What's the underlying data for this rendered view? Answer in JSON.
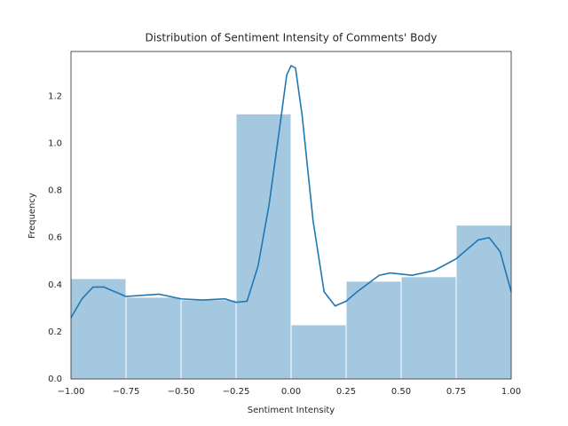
{
  "chart_data": {
    "type": "histogram",
    "title": "Distribution of  Sentiment Intensity of Comments' Body",
    "x_label": "Sentiment Intensity",
    "y_label": "Frequency",
    "bins": [
      -1,
      -0.75,
      -0.5,
      -0.25,
      0,
      0.25,
      0.5,
      0.75,
      1
    ],
    "values": [
      0.426,
      0.347,
      0.336,
      1.125,
      0.23,
      0.415,
      0.434,
      0.653
    ],
    "color": "#a5c8e1",
    "kde": {
      "color": "#1f77b4",
      "x": [
        -1,
        -0.95,
        -0.9,
        -0.85,
        -0.8,
        -0.75,
        -0.6,
        -0.5,
        -0.4,
        -0.3,
        -0.25,
        -0.2,
        -0.15,
        -0.1,
        -0.05,
        -0.02,
        0,
        0.02,
        0.05,
        0.1,
        0.15,
        0.2,
        0.25,
        0.3,
        0.4,
        0.45,
        0.55,
        0.65,
        0.75,
        0.85,
        0.9,
        0.95,
        1
      ],
      "values": [
        0.26,
        0.34,
        0.39,
        0.39,
        0.37,
        0.35,
        0.36,
        0.34,
        0.335,
        0.34,
        0.325,
        0.33,
        0.48,
        0.74,
        1.08,
        1.29,
        1.33,
        1.32,
        1.12,
        0.67,
        0.37,
        0.31,
        0.33,
        0.37,
        0.44,
        0.45,
        0.44,
        0.46,
        0.51,
        0.59,
        0.6,
        0.54,
        0.37
      ]
    },
    "xlim": [
      -1,
      1
    ],
    "ylim": [
      0,
      1.39
    ],
    "xticks": [
      {
        "value": -1,
        "label": "−1.00"
      },
      {
        "value": -0.75,
        "label": "−0.75"
      },
      {
        "value": -0.5,
        "label": "−0.50"
      },
      {
        "value": -0.25,
        "label": "−0.25"
      },
      {
        "value": 0,
        "label": "0.00"
      },
      {
        "value": 0.25,
        "label": "0.25"
      },
      {
        "value": 0.5,
        "label": "0.50"
      },
      {
        "value": 0.75,
        "label": "0.75"
      },
      {
        "value": 1,
        "label": "1.00"
      }
    ],
    "yticks": [
      {
        "value": 0,
        "label": "0.0"
      },
      {
        "value": 0.2,
        "label": "0.2"
      },
      {
        "value": 0.4,
        "label": "0.4"
      },
      {
        "value": 0.6,
        "label": "0.6"
      },
      {
        "value": 0.8,
        "label": "0.8"
      },
      {
        "value": 1,
        "label": "1.0"
      },
      {
        "value": 1.2,
        "label": "1.2"
      }
    ],
    "grid": false
  }
}
